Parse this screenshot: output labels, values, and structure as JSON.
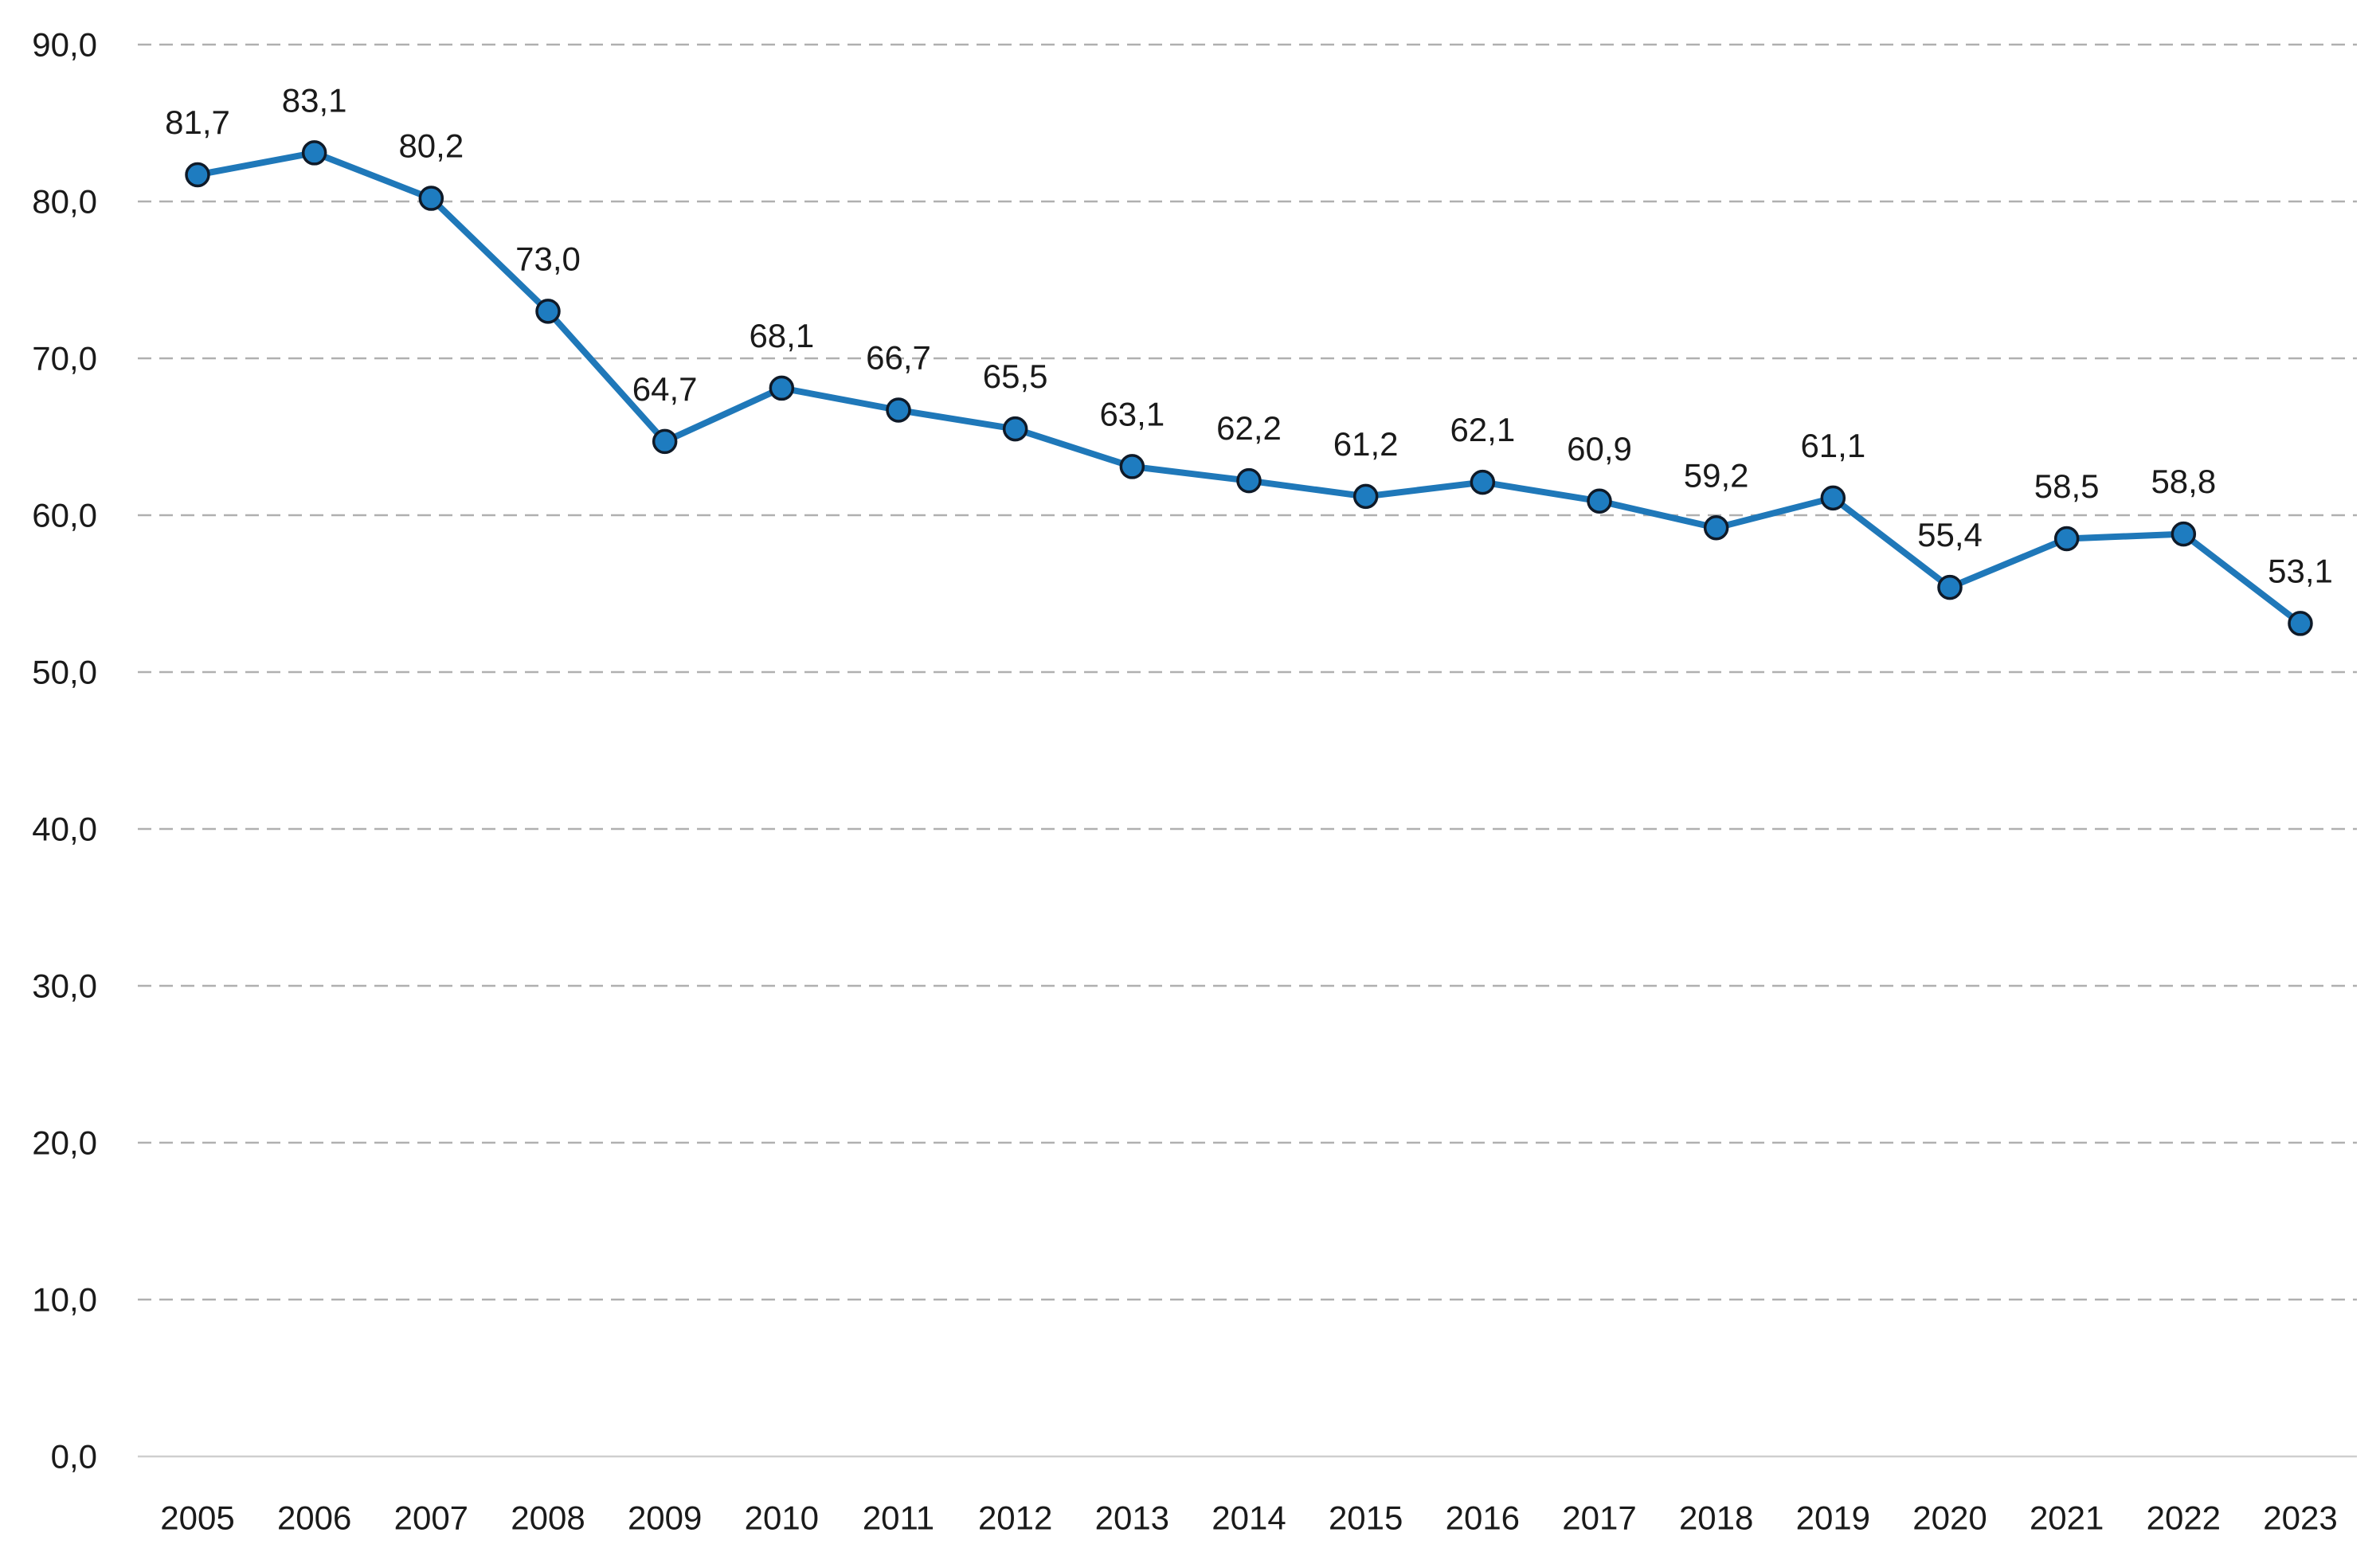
{
  "chart_data": {
    "type": "line",
    "categories": [
      "2005",
      "2006",
      "2007",
      "2008",
      "2009",
      "2010",
      "2011",
      "2012",
      "2013",
      "2014",
      "2015",
      "2016",
      "2017",
      "2018",
      "2019",
      "2020",
      "2021",
      "2022",
      "2023"
    ],
    "values": [
      81.7,
      83.1,
      80.2,
      73.0,
      64.7,
      68.1,
      66.7,
      65.5,
      63.1,
      62.2,
      61.2,
      62.1,
      60.9,
      59.2,
      61.1,
      55.4,
      58.5,
      58.8,
      53.1
    ],
    "value_labels": [
      "81,7",
      "83,1",
      "80,2",
      "73,0",
      "64,7",
      "68,1",
      "66,7",
      "65,5",
      "63,1",
      "62,2",
      "61,2",
      "62,1",
      "60,9",
      "59,2",
      "61,1",
      "55,4",
      "58,5",
      "58,8",
      "53,1"
    ],
    "y_ticks": [
      0,
      10,
      20,
      30,
      40,
      50,
      60,
      70,
      80,
      90
    ],
    "y_tick_labels": [
      "0,0",
      "10,0",
      "20,0",
      "30,0",
      "40,0",
      "50,0",
      "60,0",
      "70,0",
      "80,0",
      "90,0"
    ],
    "ylim": [
      0,
      90
    ],
    "grid": true,
    "colors": {
      "line": "#1f78b9",
      "marker": "#1e7cc0",
      "marker_edge": "#0f1a28",
      "grid": "#b0b0b0",
      "baseline": "#cfcfcf"
    }
  }
}
